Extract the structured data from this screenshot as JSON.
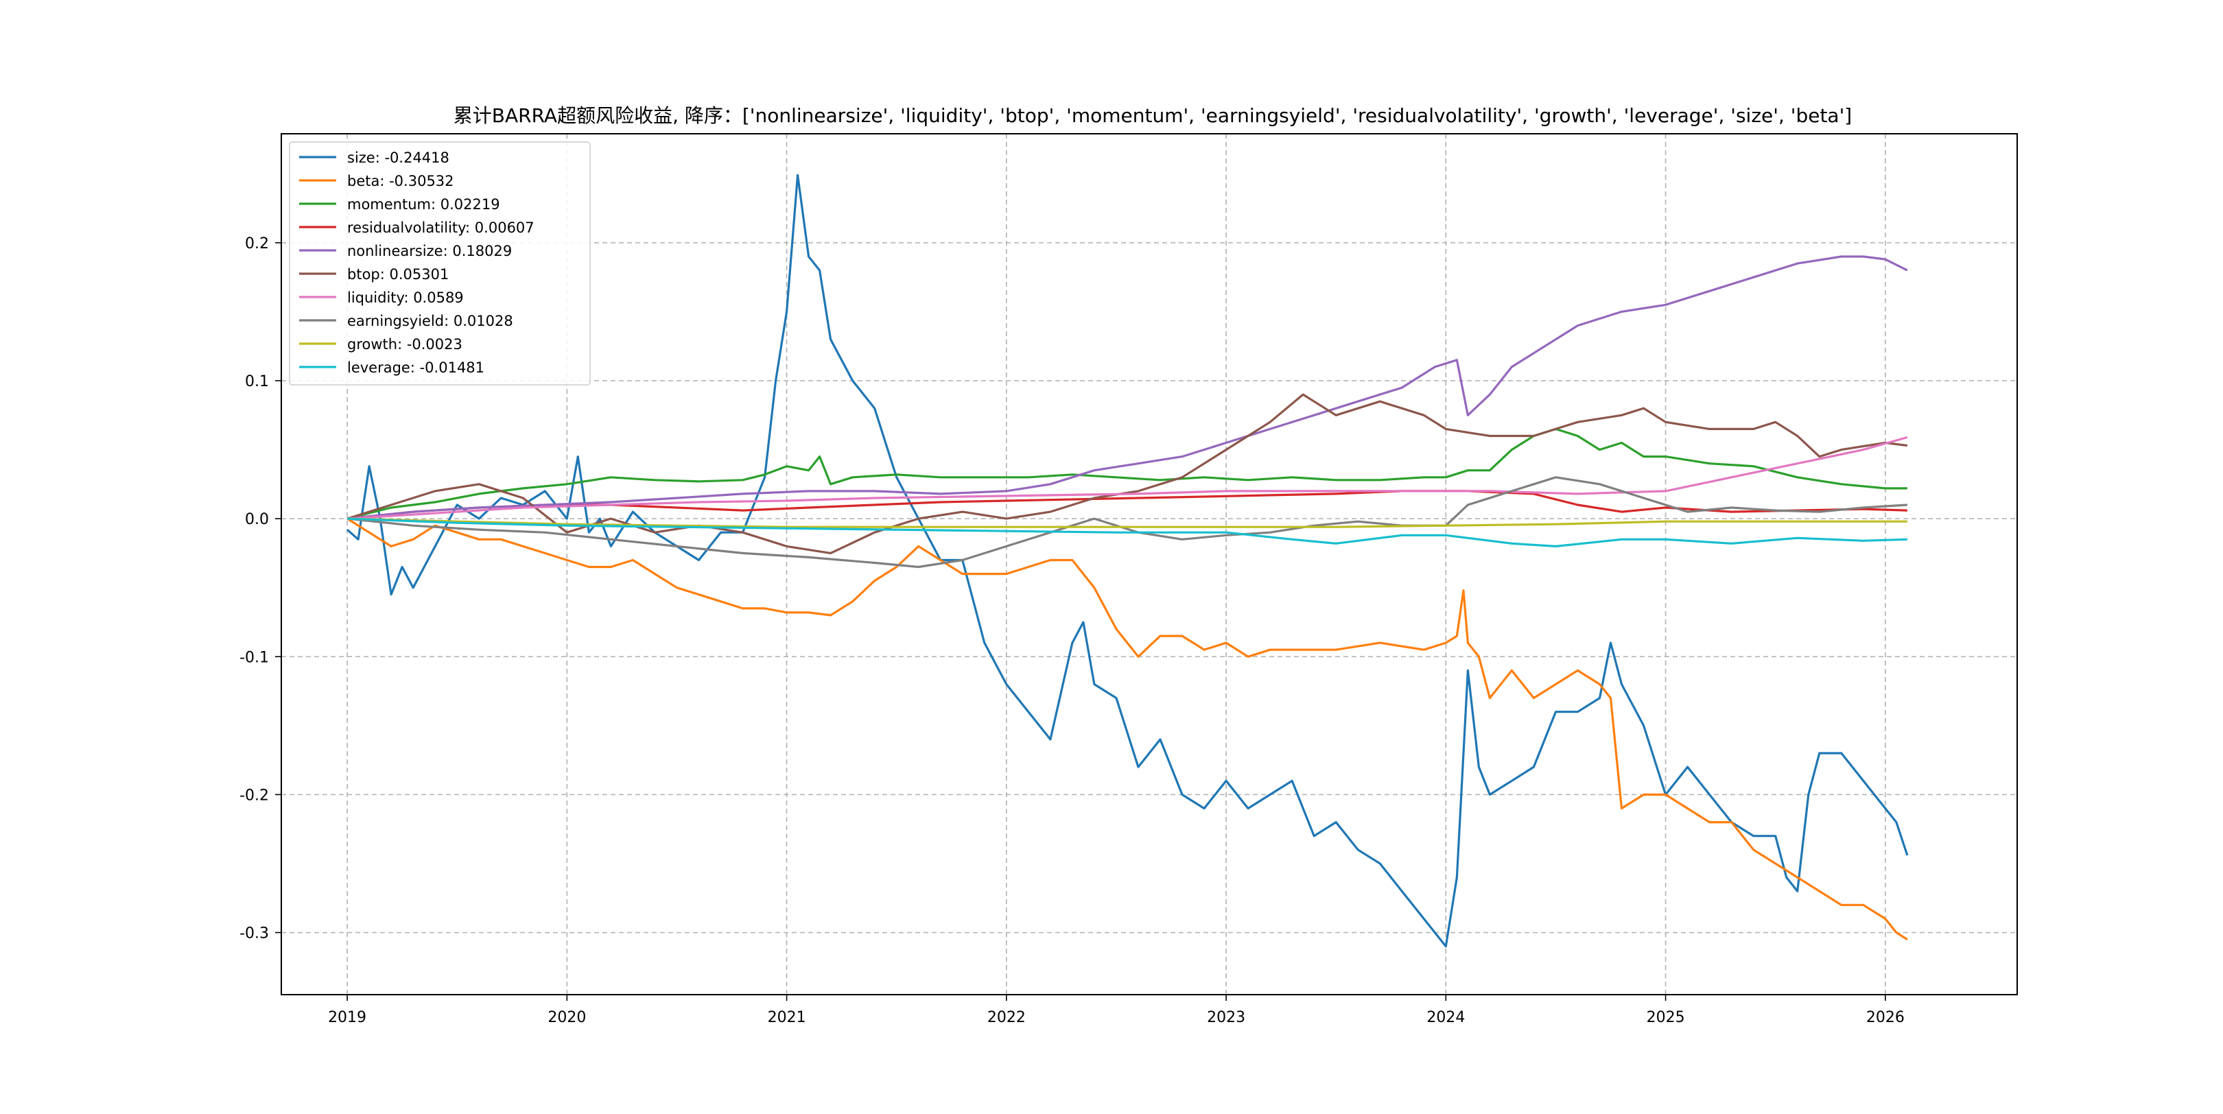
{
  "chart_data": {
    "type": "line",
    "title": "累计BARRA超额风险收益, 降序：['nonlinearsize', 'liquidity', 'btop', 'momentum', 'earningsyield', 'residualvolatility', 'growth', 'leverage', 'size', 'beta']",
    "xlabel": "",
    "ylabel": "",
    "xlim": [
      2018.7,
      2026.6
    ],
    "ylim": [
      -0.345,
      0.279
    ],
    "x_ticks": [
      {
        "value": 2019,
        "label": "2019"
      },
      {
        "value": 2020,
        "label": "2020"
      },
      {
        "value": 2021,
        "label": "2021"
      },
      {
        "value": 2022,
        "label": "2022"
      },
      {
        "value": 2023,
        "label": "2023"
      },
      {
        "value": 2024,
        "label": "2024"
      },
      {
        "value": 2025,
        "label": "2025"
      },
      {
        "value": 2026,
        "label": "2026"
      }
    ],
    "y_ticks": [
      {
        "value": -0.3,
        "label": "-0.3"
      },
      {
        "value": -0.2,
        "label": "-0.2"
      },
      {
        "value": -0.1,
        "label": "-0.1"
      },
      {
        "value": 0.0,
        "label": "0.0"
      },
      {
        "value": 0.1,
        "label": "0.1"
      },
      {
        "value": 0.2,
        "label": "0.2"
      }
    ],
    "grid": true,
    "legend_position": "upper-left",
    "series": [
      {
        "name": "size",
        "legend_label": "size: -0.24418",
        "color": "#1f77b4",
        "x": [
          2019.0,
          2019.05,
          2019.1,
          2019.15,
          2019.2,
          2019.25,
          2019.3,
          2019.4,
          2019.5,
          2019.6,
          2019.7,
          2019.8,
          2019.9,
          2020.0,
          2020.05,
          2020.1,
          2020.15,
          2020.2,
          2020.3,
          2020.4,
          2020.5,
          2020.6,
          2020.7,
          2020.8,
          2020.9,
          2020.95,
          2021.0,
          2021.05,
          2021.1,
          2021.15,
          2021.2,
          2021.3,
          2021.4,
          2021.5,
          2021.6,
          2021.7,
          2021.8,
          2021.9,
          2022.0,
          2022.1,
          2022.2,
          2022.3,
          2022.35,
          2022.4,
          2022.5,
          2022.6,
          2022.7,
          2022.8,
          2022.9,
          2023.0,
          2023.1,
          2023.2,
          2023.3,
          2023.4,
          2023.5,
          2023.6,
          2023.7,
          2023.8,
          2023.9,
          2023.95,
          2024.0,
          2024.05,
          2024.1,
          2024.15,
          2024.2,
          2024.3,
          2024.4,
          2024.5,
          2024.6,
          2024.7,
          2024.75,
          2024.8,
          2024.9,
          2025.0,
          2025.1,
          2025.2,
          2025.3,
          2025.4,
          2025.5,
          2025.55,
          2025.6,
          2025.65,
          2025.7,
          2025.8,
          2025.9,
          2026.0,
          2026.05,
          2026.1
        ],
        "values": [
          -0.008,
          -0.015,
          0.038,
          0.0,
          -0.055,
          -0.035,
          -0.05,
          -0.02,
          0.01,
          0.0,
          0.015,
          0.01,
          0.02,
          0.0,
          0.045,
          -0.01,
          0.0,
          -0.02,
          0.005,
          -0.01,
          -0.02,
          -0.03,
          -0.01,
          -0.01,
          0.03,
          0.1,
          0.15,
          0.249,
          0.19,
          0.18,
          0.13,
          0.1,
          0.08,
          0.03,
          0.0,
          -0.03,
          -0.03,
          -0.09,
          -0.12,
          -0.14,
          -0.16,
          -0.09,
          -0.075,
          -0.12,
          -0.13,
          -0.18,
          -0.16,
          -0.2,
          -0.21,
          -0.19,
          -0.21,
          -0.2,
          -0.19,
          -0.23,
          -0.22,
          -0.24,
          -0.25,
          -0.27,
          -0.29,
          -0.3,
          -0.31,
          -0.26,
          -0.11,
          -0.18,
          -0.2,
          -0.19,
          -0.18,
          -0.14,
          -0.14,
          -0.13,
          -0.09,
          -0.12,
          -0.15,
          -0.2,
          -0.18,
          -0.2,
          -0.22,
          -0.23,
          -0.23,
          -0.26,
          -0.27,
          -0.2,
          -0.17,
          -0.17,
          -0.19,
          -0.21,
          -0.22,
          -0.244
        ]
      },
      {
        "name": "beta",
        "legend_label": "beta: -0.30532",
        "color": "#ff7f0e",
        "x": [
          2019.0,
          2019.1,
          2019.2,
          2019.3,
          2019.4,
          2019.5,
          2019.6,
          2019.7,
          2019.8,
          2019.9,
          2020.0,
          2020.1,
          2020.2,
          2020.3,
          2020.4,
          2020.5,
          2020.6,
          2020.7,
          2020.8,
          2020.9,
          2021.0,
          2021.1,
          2021.2,
          2021.3,
          2021.4,
          2021.5,
          2021.6,
          2021.7,
          2021.8,
          2021.9,
          2022.0,
          2022.1,
          2022.2,
          2022.3,
          2022.4,
          2022.5,
          2022.6,
          2022.7,
          2022.8,
          2022.9,
          2023.0,
          2023.1,
          2023.2,
          2023.3,
          2023.5,
          2023.7,
          2023.9,
          2024.0,
          2024.05,
          2024.08,
          2024.1,
          2024.15,
          2024.2,
          2024.3,
          2024.4,
          2024.5,
          2024.6,
          2024.7,
          2024.75,
          2024.8,
          2024.9,
          2025.0,
          2025.1,
          2025.2,
          2025.3,
          2025.4,
          2025.5,
          2025.6,
          2025.7,
          2025.8,
          2025.9,
          2026.0,
          2026.05,
          2026.1
        ],
        "values": [
          0.0,
          -0.01,
          -0.02,
          -0.015,
          -0.005,
          -0.01,
          -0.015,
          -0.015,
          -0.02,
          -0.025,
          -0.03,
          -0.035,
          -0.035,
          -0.03,
          -0.04,
          -0.05,
          -0.055,
          -0.06,
          -0.065,
          -0.065,
          -0.068,
          -0.068,
          -0.07,
          -0.06,
          -0.045,
          -0.035,
          -0.02,
          -0.03,
          -0.04,
          -0.04,
          -0.04,
          -0.035,
          -0.03,
          -0.03,
          -0.05,
          -0.08,
          -0.1,
          -0.085,
          -0.085,
          -0.095,
          -0.09,
          -0.1,
          -0.095,
          -0.095,
          -0.095,
          -0.09,
          -0.095,
          -0.09,
          -0.085,
          -0.052,
          -0.09,
          -0.1,
          -0.13,
          -0.11,
          -0.13,
          -0.12,
          -0.11,
          -0.12,
          -0.13,
          -0.21,
          -0.2,
          -0.2,
          -0.21,
          -0.22,
          -0.22,
          -0.24,
          -0.25,
          -0.26,
          -0.27,
          -0.28,
          -0.28,
          -0.29,
          -0.3,
          -0.305
        ]
      },
      {
        "name": "momentum",
        "legend_label": "momentum: 0.02219",
        "color": "#2ca02c",
        "x": [
          2019.0,
          2019.2,
          2019.4,
          2019.6,
          2019.8,
          2020.0,
          2020.2,
          2020.4,
          2020.6,
          2020.8,
          2020.9,
          2021.0,
          2021.1,
          2021.15,
          2021.2,
          2021.3,
          2021.5,
          2021.7,
          2021.9,
          2022.1,
          2022.3,
          2022.5,
          2022.7,
          2022.9,
          2023.1,
          2023.3,
          2023.5,
          2023.7,
          2023.9,
          2024.0,
          2024.1,
          2024.2,
          2024.3,
          2024.4,
          2024.5,
          2024.6,
          2024.7,
          2024.8,
          2024.9,
          2025.0,
          2025.2,
          2025.4,
          2025.6,
          2025.8,
          2026.0,
          2026.1
        ],
        "values": [
          0.0,
          0.008,
          0.012,
          0.018,
          0.022,
          0.025,
          0.03,
          0.028,
          0.027,
          0.028,
          0.032,
          0.038,
          0.035,
          0.045,
          0.025,
          0.03,
          0.032,
          0.03,
          0.03,
          0.03,
          0.032,
          0.03,
          0.028,
          0.03,
          0.028,
          0.03,
          0.028,
          0.028,
          0.03,
          0.03,
          0.035,
          0.035,
          0.05,
          0.06,
          0.065,
          0.06,
          0.05,
          0.055,
          0.045,
          0.045,
          0.04,
          0.038,
          0.03,
          0.025,
          0.022,
          0.022
        ]
      },
      {
        "name": "residualvolatility",
        "legend_label": "residualvolatility: 0.00607",
        "color": "#d62728",
        "x": [
          2019.0,
          2019.3,
          2019.6,
          2019.9,
          2020.2,
          2020.5,
          2020.8,
          2021.1,
          2021.4,
          2021.7,
          2022.0,
          2022.3,
          2022.6,
          2022.9,
          2023.2,
          2023.5,
          2023.8,
          2024.1,
          2024.4,
          2024.6,
          2024.8,
          2025.0,
          2025.3,
          2025.6,
          2025.9,
          2026.1
        ],
        "values": [
          0.0,
          0.005,
          0.008,
          0.01,
          0.01,
          0.008,
          0.006,
          0.008,
          0.01,
          0.012,
          0.013,
          0.014,
          0.015,
          0.016,
          0.017,
          0.018,
          0.02,
          0.02,
          0.018,
          0.01,
          0.005,
          0.008,
          0.005,
          0.006,
          0.007,
          0.006
        ]
      },
      {
        "name": "nonlinearsize",
        "legend_label": "nonlinearsize: 0.18029",
        "color": "#9467bd",
        "x": [
          2019.0,
          2019.3,
          2019.6,
          2019.9,
          2020.2,
          2020.5,
          2020.8,
          2021.1,
          2021.4,
          2021.7,
          2022.0,
          2022.2,
          2022.4,
          2022.6,
          2022.8,
          2023.0,
          2023.2,
          2023.4,
          2023.6,
          2023.8,
          2023.95,
          2024.05,
          2024.1,
          2024.2,
          2024.3,
          2024.4,
          2024.5,
          2024.6,
          2024.8,
          2025.0,
          2025.2,
          2025.4,
          2025.6,
          2025.8,
          2025.9,
          2026.0,
          2026.1
        ],
        "values": [
          0.0,
          0.005,
          0.008,
          0.01,
          0.012,
          0.015,
          0.018,
          0.02,
          0.02,
          0.018,
          0.02,
          0.025,
          0.035,
          0.04,
          0.045,
          0.055,
          0.065,
          0.075,
          0.085,
          0.095,
          0.11,
          0.115,
          0.075,
          0.09,
          0.11,
          0.12,
          0.13,
          0.14,
          0.15,
          0.155,
          0.165,
          0.175,
          0.185,
          0.19,
          0.19,
          0.188,
          0.18
        ]
      },
      {
        "name": "btop",
        "legend_label": "btop: 0.05301",
        "color": "#8c564b",
        "x": [
          2019.0,
          2019.2,
          2019.4,
          2019.6,
          2019.8,
          2020.0,
          2020.2,
          2020.4,
          2020.6,
          2020.8,
          2021.0,
          2021.2,
          2021.4,
          2021.6,
          2021.8,
          2022.0,
          2022.2,
          2022.4,
          2022.6,
          2022.8,
          2023.0,
          2023.2,
          2023.35,
          2023.5,
          2023.7,
          2023.9,
          2024.0,
          2024.2,
          2024.4,
          2024.6,
          2024.8,
          2024.9,
          2025.0,
          2025.2,
          2025.4,
          2025.5,
          2025.6,
          2025.7,
          2025.8,
          2026.0,
          2026.1
        ],
        "values": [
          0.0,
          0.01,
          0.02,
          0.025,
          0.015,
          -0.01,
          0.0,
          -0.01,
          -0.005,
          -0.01,
          -0.02,
          -0.025,
          -0.01,
          0.0,
          0.005,
          0.0,
          0.005,
          0.015,
          0.02,
          0.03,
          0.05,
          0.07,
          0.09,
          0.075,
          0.085,
          0.075,
          0.065,
          0.06,
          0.06,
          0.07,
          0.075,
          0.08,
          0.07,
          0.065,
          0.065,
          0.07,
          0.06,
          0.045,
          0.05,
          0.055,
          0.053
        ]
      },
      {
        "name": "liquidity",
        "legend_label": "liquidity: 0.0589",
        "color": "#e377c2",
        "x": [
          2019.0,
          2019.4,
          2019.8,
          2020.2,
          2020.6,
          2021.0,
          2021.4,
          2021.8,
          2022.2,
          2022.6,
          2023.0,
          2023.4,
          2023.8,
          2024.2,
          2024.6,
          2025.0,
          2025.3,
          2025.6,
          2025.9,
          2026.1
        ],
        "values": [
          0.0,
          0.004,
          0.008,
          0.01,
          0.012,
          0.013,
          0.015,
          0.016,
          0.017,
          0.018,
          0.02,
          0.02,
          0.02,
          0.02,
          0.018,
          0.02,
          0.03,
          0.04,
          0.05,
          0.059
        ]
      },
      {
        "name": "earningsyield",
        "legend_label": "earningsyield: 0.01028",
        "color": "#7f7f7f",
        "x": [
          2019.0,
          2019.3,
          2019.6,
          2019.9,
          2020.2,
          2020.5,
          2020.8,
          2021.1,
          2021.4,
          2021.6,
          2021.8,
          2022.0,
          2022.2,
          2022.4,
          2022.6,
          2022.8,
          2023.0,
          2023.2,
          2023.4,
          2023.6,
          2023.8,
          2024.0,
          2024.1,
          2024.3,
          2024.5,
          2024.7,
          2024.9,
          2025.1,
          2025.3,
          2025.5,
          2025.7,
          2025.9,
          2026.1
        ],
        "values": [
          0.0,
          -0.005,
          -0.008,
          -0.01,
          -0.015,
          -0.02,
          -0.025,
          -0.028,
          -0.032,
          -0.035,
          -0.03,
          -0.02,
          -0.01,
          0.0,
          -0.01,
          -0.015,
          -0.012,
          -0.01,
          -0.005,
          -0.002,
          -0.005,
          -0.005,
          0.01,
          0.02,
          0.03,
          0.025,
          0.015,
          0.005,
          0.008,
          0.006,
          0.005,
          0.008,
          0.01
        ]
      },
      {
        "name": "growth",
        "legend_label": "growth: -0.0023",
        "color": "#bcbd22",
        "x": [
          2019.0,
          2019.5,
          2020.0,
          2020.5,
          2021.0,
          2021.5,
          2022.0,
          2022.5,
          2023.0,
          2023.5,
          2024.0,
          2024.5,
          2025.0,
          2025.5,
          2026.0,
          2026.1
        ],
        "values": [
          0.0,
          -0.002,
          -0.004,
          -0.005,
          -0.006,
          -0.006,
          -0.006,
          -0.006,
          -0.006,
          -0.006,
          -0.005,
          -0.004,
          -0.002,
          -0.002,
          -0.002,
          -0.002
        ]
      },
      {
        "name": "leverage",
        "legend_label": "leverage: -0.01481",
        "color": "#17becf",
        "x": [
          2019.0,
          2019.5,
          2020.0,
          2020.5,
          2021.0,
          2021.5,
          2022.0,
          2022.5,
          2023.0,
          2023.3,
          2023.5,
          2023.8,
          2024.0,
          2024.3,
          2024.5,
          2024.8,
          2025.0,
          2025.3,
          2025.6,
          2025.9,
          2026.1
        ],
        "values": [
          0.0,
          -0.003,
          -0.005,
          -0.006,
          -0.007,
          -0.008,
          -0.009,
          -0.01,
          -0.01,
          -0.015,
          -0.018,
          -0.012,
          -0.012,
          -0.018,
          -0.02,
          -0.015,
          -0.015,
          -0.018,
          -0.014,
          -0.016,
          -0.015
        ]
      }
    ]
  }
}
